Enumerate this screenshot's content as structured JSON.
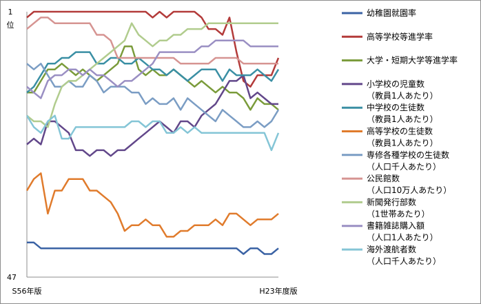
{
  "chart_data": {
    "type": "line",
    "title": "",
    "xlabel": "",
    "ylabel": "",
    "y_axis": {
      "top_label": "1",
      "unit_label": "位",
      "bottom_label": "47",
      "ylim": [
        1,
        47
      ],
      "inverted": true
    },
    "x_axis": {
      "left_label": "S56年版",
      "right_label": "H23年度版"
    },
    "legend_placement": "right",
    "grid": false,
    "series": [
      {
        "name": "幼稚園就園率",
        "color": "#3a62a4",
        "values": [
          41,
          41,
          42,
          42,
          42,
          42,
          42,
          42,
          42,
          42,
          42,
          42,
          42,
          42,
          42,
          42,
          42,
          42,
          42,
          42,
          42,
          42,
          42,
          42,
          42,
          42,
          42,
          42,
          42,
          42,
          42,
          43,
          42,
          42,
          43,
          43,
          42
        ]
      },
      {
        "name": "高等学校等進学率",
        "color": "#b33b3a",
        "values": [
          2,
          1,
          1,
          1,
          1,
          1,
          1,
          1,
          1,
          1,
          1,
          1,
          1,
          1,
          1,
          1,
          1,
          1,
          2,
          1,
          2,
          1,
          1,
          1,
          1,
          2,
          4,
          4,
          5,
          2,
          8,
          13,
          14,
          12,
          12,
          12,
          9
        ]
      },
      {
        "name": "大学・短期大学等進学率",
        "color": "#7a9b3a",
        "values": [
          15,
          15,
          13,
          11,
          11,
          10,
          11,
          12,
          11,
          12,
          13,
          12,
          11,
          10,
          7,
          7,
          11,
          12,
          11,
          12,
          12,
          11,
          12,
          13,
          14,
          13,
          14,
          15,
          14,
          15,
          15,
          16,
          18,
          16,
          17,
          17,
          18
        ]
      },
      {
        "name": "小学校の児童数（教員1人あたり）",
        "color": "#62478a",
        "values": [
          24,
          23,
          24,
          20,
          20,
          21,
          22,
          25,
          25,
          26,
          25,
          25,
          26,
          25,
          25,
          24,
          23,
          22,
          21,
          20,
          21,
          22,
          20,
          20,
          21,
          19,
          18,
          17,
          15,
          13,
          13,
          12,
          16,
          15,
          16,
          17,
          17
        ]
      },
      {
        "name": "中学校の生徒数（教員1人あたり）",
        "color": "#3a8fa4",
        "values": [
          15,
          14,
          12,
          10,
          10,
          9,
          9,
          8,
          8,
          8,
          10,
          10,
          9,
          9,
          10,
          10,
          9,
          10,
          11,
          11,
          12,
          11,
          12,
          13,
          12,
          11,
          11,
          11,
          13,
          11,
          12,
          12,
          12,
          11,
          12,
          13,
          11
        ]
      },
      {
        "name": "高等学校の生徒数（教員1人あたり）",
        "color": "#e07b2c",
        "values": [
          32,
          30,
          29,
          36,
          32,
          32,
          30,
          30,
          30,
          32,
          32,
          33,
          34,
          36,
          39,
          38,
          38,
          37,
          38,
          38,
          40,
          40,
          39,
          39,
          38,
          38,
          38,
          37,
          38,
          36,
          36,
          37,
          38,
          37,
          37,
          37,
          36
        ]
      },
      {
        "name": "専修各種学校の生徒数（人口千人あたり）",
        "color": "#7b9dc4",
        "values": [
          10,
          11,
          10,
          12,
          14,
          14,
          13,
          14,
          14,
          12,
          13,
          15,
          14,
          14,
          14,
          15,
          15,
          17,
          16,
          17,
          17,
          16,
          18,
          16,
          17,
          18,
          19,
          20,
          18,
          19,
          20,
          21,
          21,
          20,
          21,
          20,
          18
        ]
      },
      {
        "name": "公民館数（人口10万人あたり）",
        "color": "#d69492",
        "values": [
          4,
          3,
          2,
          2,
          3,
          3,
          3,
          3,
          3,
          3,
          5,
          5,
          6,
          9,
          9,
          9,
          9,
          9,
          9,
          9,
          9,
          9,
          10,
          10,
          10,
          10,
          10,
          9,
          9,
          9,
          9,
          10,
          10,
          10,
          10,
          10,
          10
        ]
      },
      {
        "name": "新聞発行部数（1世帯あたり）",
        "color": "#b1cc8e",
        "values": [
          19,
          20,
          20,
          21,
          17,
          14,
          13,
          13,
          12,
          11,
          10,
          9,
          8,
          7,
          6,
          3,
          5,
          6,
          7,
          6,
          6,
          5,
          5,
          4,
          4,
          4,
          3,
          3,
          3,
          3,
          3,
          3,
          3,
          3,
          3,
          3,
          3
        ]
      },
      {
        "name": "書籍雑誌購入額（人口1人あたり）",
        "color": "#9a8fc3",
        "values": [
          14,
          15,
          16,
          13,
          12,
          12,
          11,
          11,
          12,
          11,
          12,
          12,
          13,
          14,
          13,
          13,
          12,
          11,
          10,
          8,
          8,
          8,
          8,
          8,
          8,
          7,
          7,
          6,
          6,
          6,
          6,
          6,
          7,
          7,
          7,
          7,
          7
        ]
      },
      {
        "name": "海外渡航者数（人口千人あたり）",
        "color": "#84c5d6",
        "values": [
          19,
          21,
          22,
          20,
          19,
          23,
          23,
          21,
          21,
          21,
          21,
          21,
          21,
          21,
          21,
          20,
          20,
          21,
          20,
          20,
          22,
          22,
          21,
          22,
          21,
          22,
          22,
          22,
          22,
          22,
          22,
          22,
          22,
          22,
          22,
          25,
          22
        ]
      }
    ]
  }
}
